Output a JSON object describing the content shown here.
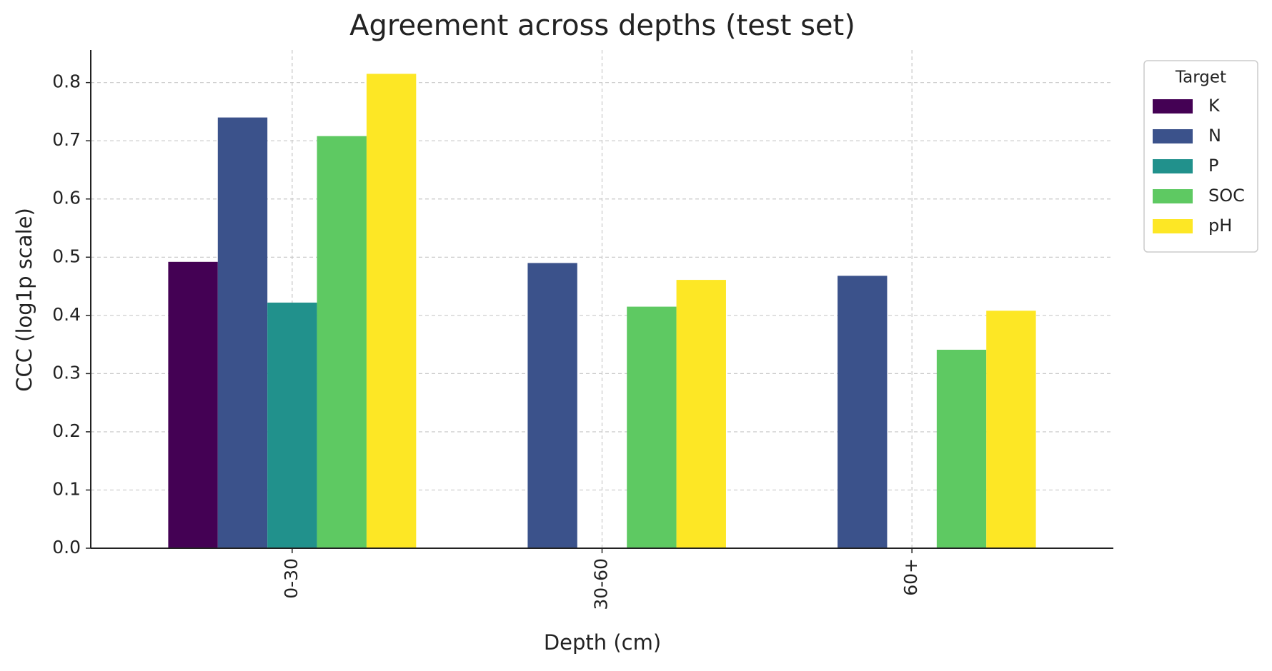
{
  "chart_data": {
    "type": "bar",
    "title": "Agreement across depths (test set)",
    "x_label": "Depth (cm)",
    "y_label": "CCC (log1p scale)",
    "categories": [
      "0-30",
      "30-60",
      "60+"
    ],
    "legend_title": "Target",
    "legend_position": "outside upper right",
    "grid": true,
    "series": [
      {
        "name": "K",
        "color": "#440154",
        "values": [
          0.492,
          null,
          null
        ]
      },
      {
        "name": "N",
        "color": "#3b528b",
        "values": [
          0.74,
          0.49,
          0.468
        ]
      },
      {
        "name": "P",
        "color": "#21918c",
        "values": [
          0.422,
          null,
          null
        ]
      },
      {
        "name": "SOC",
        "color": "#5ec962",
        "values": [
          0.708,
          0.415,
          0.341
        ]
      },
      {
        "name": "pH",
        "color": "#fde725",
        "values": [
          0.815,
          0.461,
          0.408
        ]
      }
    ],
    "ylim": [
      0,
      0.856
    ],
    "yticks": [
      {
        "value": 0,
        "label": "0.0"
      },
      0.1,
      0.2,
      0.3,
      0.4,
      0.5,
      0.6,
      0.7,
      0.8
    ]
  }
}
